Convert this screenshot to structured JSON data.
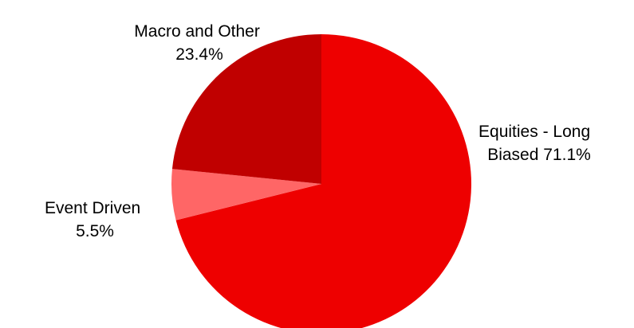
{
  "chart_data": {
    "type": "pie",
    "title": "",
    "start_angle_deg": 0,
    "direction": "clockwise",
    "slices": [
      {
        "label_lines": [
          "Equities - Long",
          "Biased 71.1%"
        ],
        "category": "Equities - Long Biased",
        "value": 71.1,
        "color": "#ee0000"
      },
      {
        "label_lines": [
          "Event Driven",
          "5.5%"
        ],
        "category": "Event Driven",
        "value": 5.5,
        "color": "#ff6666"
      },
      {
        "label_lines": [
          "Macro and Other",
          "23.4%"
        ],
        "category": "Macro and Other",
        "value": 23.4,
        "color": "#c00000"
      }
    ],
    "legend": "none",
    "label_position": "outside"
  }
}
